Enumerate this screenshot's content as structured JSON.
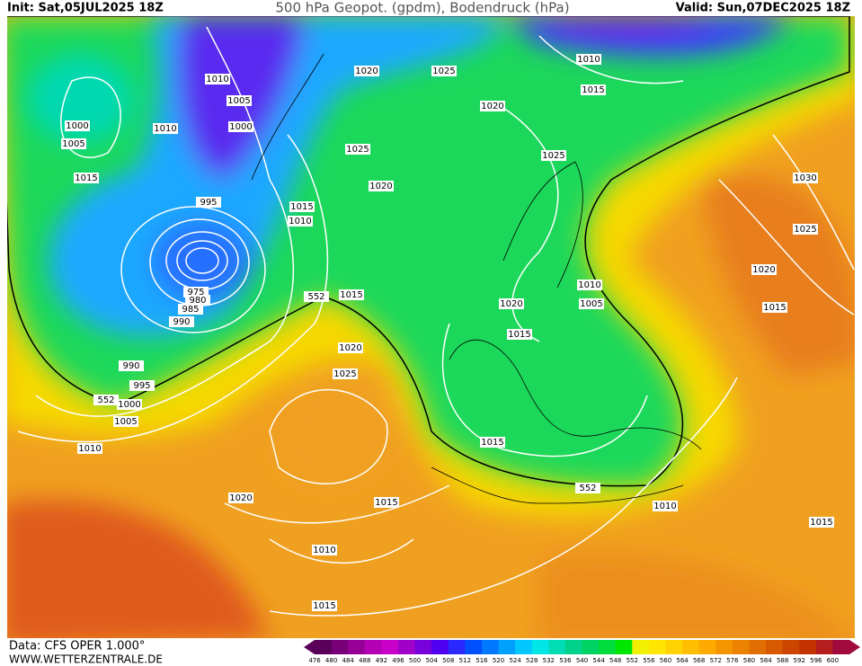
{
  "header": {
    "init": "Init: Sat,05JUL2025 18Z",
    "title": "500 hPa Geopot. (gpdm), Bodendruck (hPa)",
    "valid": "Valid: Sun,07DEC2025 18Z"
  },
  "footer": {
    "source": "Data: CFS OPER 1.000°",
    "site": "WWW.WETTERZENTRALE.DE"
  },
  "isobar_labels": [
    1010,
    1005,
    1000,
    1010,
    1000,
    1005,
    1015,
    995,
    1015,
    1010,
    975,
    980,
    985,
    990,
    990,
    995,
    1000,
    1005,
    1010,
    1015,
    552,
    1020,
    1025,
    552,
    1020,
    1025,
    1020,
    1025,
    1020,
    1025,
    1010,
    1015,
    1030,
    1025,
    1020,
    1015,
    1010,
    1005,
    1020,
    1015,
    1015,
    552,
    1010,
    1015,
    1020,
    1010,
    1015,
    1015
  ],
  "colorbar": {
    "values": [
      476,
      480,
      484,
      488,
      492,
      496,
      500,
      504,
      508,
      512,
      516,
      520,
      524,
      528,
      532,
      536,
      540,
      544,
      548,
      552,
      556,
      560,
      564,
      568,
      572,
      576,
      580,
      584,
      588,
      592,
      596,
      600
    ],
    "colors": [
      "#5a005a",
      "#780078",
      "#960096",
      "#b400b4",
      "#c800c8",
      "#a000c8",
      "#7800dc",
      "#5000f0",
      "#2828ff",
      "#0050ff",
      "#0078ff",
      "#00a0ff",
      "#00c8ff",
      "#00e6e6",
      "#00dcb4",
      "#00d28c",
      "#00d264",
      "#00dc3c",
      "#00e600",
      "#f0f000",
      "#ffe600",
      "#ffd200",
      "#ffbe00",
      "#ffaa00",
      "#f59600",
      "#eb8200",
      "#e16e00",
      "#d75a00",
      "#cd4600",
      "#c33200",
      "#b41e1e",
      "#a00a3c"
    ]
  }
}
